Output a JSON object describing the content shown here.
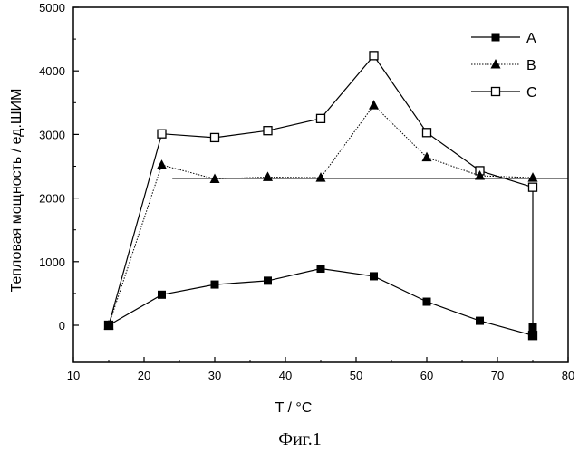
{
  "chart_data": {
    "type": "line",
    "title": "",
    "xlabel": "T / °C",
    "ylabel": "Тепловая мощность / ед.ШИМ",
    "xlim": [
      10,
      80
    ],
    "ylim": [
      -300,
      5000
    ],
    "xticks": [
      10,
      20,
      30,
      40,
      50,
      60,
      70,
      80
    ],
    "yticks": [
      0,
      1000,
      2000,
      3000,
      4000,
      5000
    ],
    "grid": false,
    "legend_position": "top-right",
    "series": [
      {
        "name": "A",
        "marker": "filled-square",
        "line_style": "solid",
        "points": [
          [
            15,
            0
          ],
          [
            22.5,
            480
          ],
          [
            30,
            640
          ],
          [
            37.5,
            700
          ],
          [
            45,
            890
          ],
          [
            52.5,
            770
          ],
          [
            60,
            370
          ],
          [
            67.5,
            70
          ],
          [
            75,
            -160
          ],
          [
            75,
            -30
          ]
        ]
      },
      {
        "name": "B",
        "marker": "filled-triangle",
        "line_style": "dotted",
        "points": [
          [
            15,
            0
          ],
          [
            22.5,
            2520
          ],
          [
            30,
            2300
          ],
          [
            37.5,
            2330
          ],
          [
            45,
            2320
          ],
          [
            52.5,
            3460
          ],
          [
            60,
            2640
          ],
          [
            67.5,
            2350
          ],
          [
            75,
            2320
          ]
        ]
      },
      {
        "name": "C",
        "marker": "open-square",
        "line_style": "solid",
        "points": [
          [
            15,
            0
          ],
          [
            22.5,
            3010
          ],
          [
            30,
            2950
          ],
          [
            37.5,
            3060
          ],
          [
            45,
            3250
          ],
          [
            52.5,
            4240
          ],
          [
            60,
            3030
          ],
          [
            67.5,
            2430
          ],
          [
            75,
            2170
          ],
          [
            75,
            -160
          ]
        ]
      }
    ],
    "reference_line": {
      "x": [
        24,
        80
      ],
      "y": 2310
    }
  },
  "caption": "Фиг.1"
}
